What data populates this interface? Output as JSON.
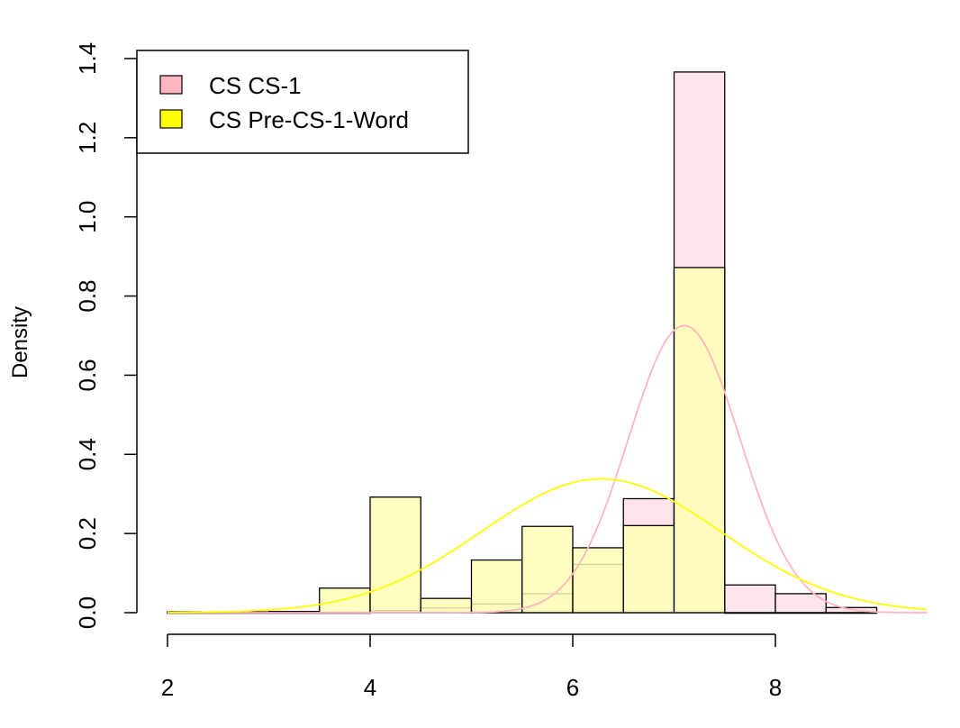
{
  "chart_data": {
    "type": "bar",
    "title": "",
    "xlabel": "",
    "ylabel": "Density",
    "xlim": [
      2,
      9.5
    ],
    "ylim": [
      0,
      1.4
    ],
    "x_ticks": [
      "2",
      "4",
      "6",
      "8"
    ],
    "y_ticks": [
      "0.0",
      "0.2",
      "0.4",
      "0.6",
      "0.8",
      "1.0",
      "1.2",
      "1.4"
    ],
    "grid": false,
    "legend_position": "top-left",
    "bin_edges": [
      2.0,
      2.5,
      3.0,
      3.5,
      4.0,
      4.5,
      5.0,
      5.5,
      6.0,
      6.5,
      7.0,
      7.5,
      8.0,
      8.5,
      9.0
    ],
    "series": [
      {
        "name": "CS CS-1",
        "legend_color": "#ffb6c1",
        "fill_color": "#ffe4ec",
        "curve_color": "#ffb6c1",
        "values": [
          0.0,
          0.0,
          0.0,
          0.0,
          0.005,
          0.012,
          0.022,
          0.048,
          0.122,
          0.288,
          1.366,
          0.07,
          0.048,
          0.013
        ],
        "normal_fit": {
          "mean": 7.1,
          "sd": 0.55
        }
      },
      {
        "name": "CS Pre-CS-1-Word",
        "legend_color": "#ffff00",
        "fill_color": "#ffffb3",
        "curve_color": "#ffff00",
        "values": [
          0.002,
          0.002,
          0.003,
          0.062,
          0.292,
          0.036,
          0.133,
          0.218,
          0.164,
          0.22,
          0.872,
          0.0,
          0.0,
          0.0
        ],
        "normal_fit": {
          "mean": 6.28,
          "sd": 1.18
        }
      }
    ]
  }
}
